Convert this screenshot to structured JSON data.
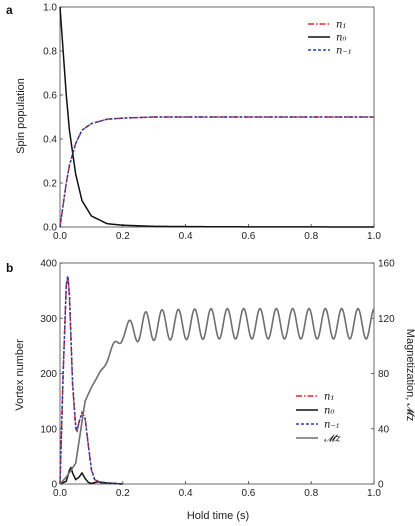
{
  "chart_data": [
    {
      "type": "line",
      "panel_label": "a",
      "ylabel": "Spin population",
      "xlabel": "",
      "xlim": [
        0,
        1.0
      ],
      "ylim": [
        0,
        1.0
      ],
      "x_ticks": [
        "0.0",
        "0.2",
        "0.4",
        "0.6",
        "0.8",
        "1.0"
      ],
      "y_ticks": [
        "0.0",
        "0.2",
        "0.4",
        "0.6",
        "0.8",
        "1.0"
      ],
      "legend_position": "top-right",
      "series": [
        {
          "name": "n₁",
          "color": "#e8252b",
          "style": "dash-dot",
          "x": [
            0,
            0.01,
            0.02,
            0.03,
            0.05,
            0.07,
            0.1,
            0.15,
            0.2,
            0.3,
            0.5,
            1.0
          ],
          "y": [
            0,
            0.1,
            0.2,
            0.28,
            0.38,
            0.44,
            0.47,
            0.49,
            0.495,
            0.5,
            0.5,
            0.5
          ]
        },
        {
          "name": "n₀",
          "color": "#111111",
          "style": "solid",
          "x": [
            0,
            0.01,
            0.02,
            0.03,
            0.05,
            0.07,
            0.1,
            0.15,
            0.2,
            0.3,
            0.5,
            1.0
          ],
          "y": [
            1.0,
            0.8,
            0.6,
            0.44,
            0.24,
            0.12,
            0.05,
            0.015,
            0.008,
            0.003,
            0.001,
            0.0
          ]
        },
        {
          "name": "n₋₁",
          "color": "#2c3e9e",
          "style": "dotted",
          "x": [
            0,
            0.01,
            0.02,
            0.03,
            0.05,
            0.07,
            0.1,
            0.15,
            0.2,
            0.3,
            0.5,
            1.0
          ],
          "y": [
            0,
            0.1,
            0.2,
            0.28,
            0.38,
            0.44,
            0.47,
            0.49,
            0.495,
            0.5,
            0.5,
            0.5
          ]
        }
      ]
    },
    {
      "type": "line",
      "panel_label": "b",
      "xlabel": "Hold time (s)",
      "ylabel": "Vortex number",
      "y2label": "Magnetization, 𝓜z",
      "xlim": [
        0,
        1.0
      ],
      "ylim": [
        0,
        400
      ],
      "y2lim": [
        0,
        160
      ],
      "x_ticks": [
        "0.0",
        "0.2",
        "0.4",
        "0.6",
        "0.8",
        "1.0"
      ],
      "y_ticks": [
        "0",
        "100",
        "200",
        "300",
        "400"
      ],
      "y2_ticks": [
        "0",
        "40",
        "80",
        "120",
        "160"
      ],
      "legend_position": "center-right",
      "series": [
        {
          "name": "n₁",
          "color": "#e8252b",
          "style": "dash-dot",
          "axis": "left",
          "x": [
            0,
            0.01,
            0.02,
            0.025,
            0.03,
            0.04,
            0.05,
            0.055,
            0.06,
            0.07,
            0.08,
            0.09,
            0.1,
            0.11,
            0.13,
            0.2
          ],
          "y": [
            0,
            200,
            360,
            375,
            340,
            180,
            100,
            95,
            110,
            130,
            120,
            70,
            25,
            8,
            2,
            0
          ]
        },
        {
          "name": "n₀",
          "color": "#111111",
          "style": "solid",
          "axis": "left",
          "x": [
            0,
            0.02,
            0.03,
            0.035,
            0.04,
            0.05,
            0.06,
            0.07,
            0.08,
            0.09,
            0.1,
            0.12,
            0.15,
            0.2
          ],
          "y": [
            0,
            5,
            25,
            30,
            20,
            8,
            12,
            20,
            10,
            3,
            1,
            4,
            2,
            0
          ]
        },
        {
          "name": "n₋₁",
          "color": "#2c3e9e",
          "style": "dotted",
          "axis": "left",
          "x": [
            0,
            0.01,
            0.02,
            0.025,
            0.03,
            0.04,
            0.05,
            0.055,
            0.06,
            0.07,
            0.08,
            0.09,
            0.1,
            0.11,
            0.13,
            0.2
          ],
          "y": [
            0,
            200,
            360,
            378,
            345,
            185,
            105,
            98,
            112,
            128,
            118,
            72,
            27,
            9,
            2,
            0
          ]
        },
        {
          "name": "𝓜z",
          "color": "#6e6e6e",
          "style": "solid",
          "axis": "right",
          "model": "oscillation",
          "x": [
            0,
            0.02,
            0.05,
            0.08,
            0.1,
            0.15,
            0.2,
            0.3,
            0.5,
            1.0
          ],
          "y": [
            0,
            5,
            15,
            60,
            70,
            90,
            110,
            115,
            116,
            116
          ],
          "oscillation_amplitude": 11,
          "oscillation_period": 0.052
        }
      ]
    }
  ]
}
